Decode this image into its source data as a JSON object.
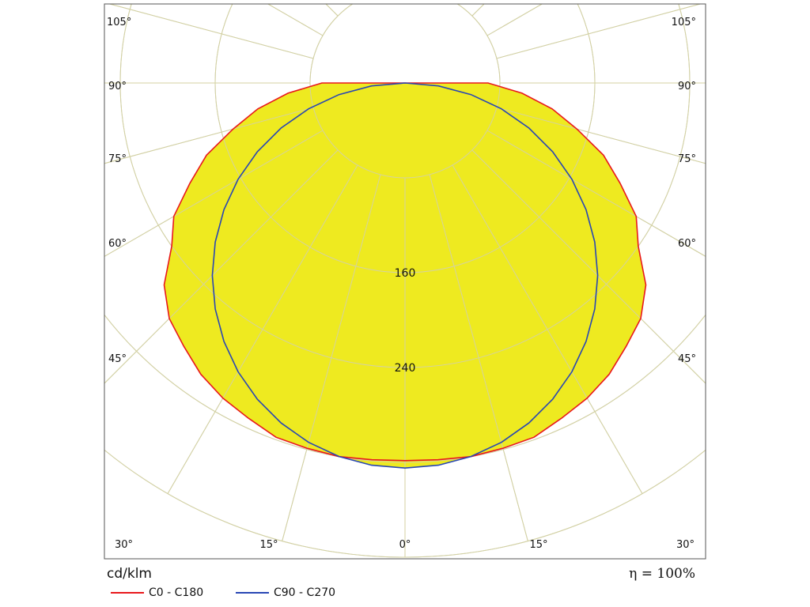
{
  "chart_data": {
    "type": "polar",
    "unit_label": "cd/klm",
    "efficiency_symbol": "η",
    "efficiency_text": "= 100%",
    "angle_tick_labels": [
      {
        "angle": 105,
        "text": "105°",
        "side": "left"
      },
      {
        "angle": 105,
        "text": "105°",
        "side": "right"
      },
      {
        "angle": 90,
        "text": "90°",
        "side": "left"
      },
      {
        "angle": 90,
        "text": "90°",
        "side": "right"
      },
      {
        "angle": 75,
        "text": "75°",
        "side": "left"
      },
      {
        "angle": 75,
        "text": "75°",
        "side": "right"
      },
      {
        "angle": 60,
        "text": "60°",
        "side": "left"
      },
      {
        "angle": 60,
        "text": "60°",
        "side": "right"
      },
      {
        "angle": 45,
        "text": "45°",
        "side": "left"
      },
      {
        "angle": 45,
        "text": "45°",
        "side": "right"
      },
      {
        "angle": 30,
        "text": "30°",
        "side": "bottom-left"
      },
      {
        "angle": 15,
        "text": "15°",
        "side": "bottom-left"
      },
      {
        "angle": 0,
        "text": "0°",
        "side": "bottom"
      },
      {
        "angle": 15,
        "text": "15°",
        "side": "bottom-right"
      },
      {
        "angle": 30,
        "text": "30°",
        "side": "bottom-right"
      }
    ],
    "radial_ticks": [
      80,
      160,
      240,
      320,
      400
    ],
    "radial_labels": [
      {
        "value": 160,
        "text": "160"
      },
      {
        "value": 240,
        "text": "240"
      }
    ],
    "angular_gridlines_deg": [
      0,
      15,
      30,
      45,
      60,
      75,
      90,
      105,
      120,
      135,
      150,
      165,
      180
    ],
    "gamma_deg": [
      0,
      5,
      10,
      15,
      20,
      25,
      30,
      35,
      40,
      45,
      50,
      55,
      60,
      65,
      70,
      75,
      80,
      85,
      90
    ],
    "series": [
      {
        "name": "C0 - C180",
        "color": "#e8181c",
        "values": [
          318.5,
          319,
          320,
          319,
          318,
          312,
          307,
          300,
          290,
          281,
          265,
          240,
          225,
          200,
          178,
          150,
          126,
          99,
          70
        ]
      },
      {
        "name": "C90 - C270",
        "color": "#2846b4",
        "values": [
          324.8,
          323.6,
          319.9,
          313.8,
          305.2,
          294.4,
          281.3,
          266.1,
          248.8,
          229.7,
          208.8,
          186.3,
          162.4,
          137.3,
          111.2,
          84.1,
          56.5,
          28.3,
          0
        ]
      }
    ],
    "fill_color": "#eeea20",
    "legend_position": "bottom-left",
    "grid": true
  }
}
